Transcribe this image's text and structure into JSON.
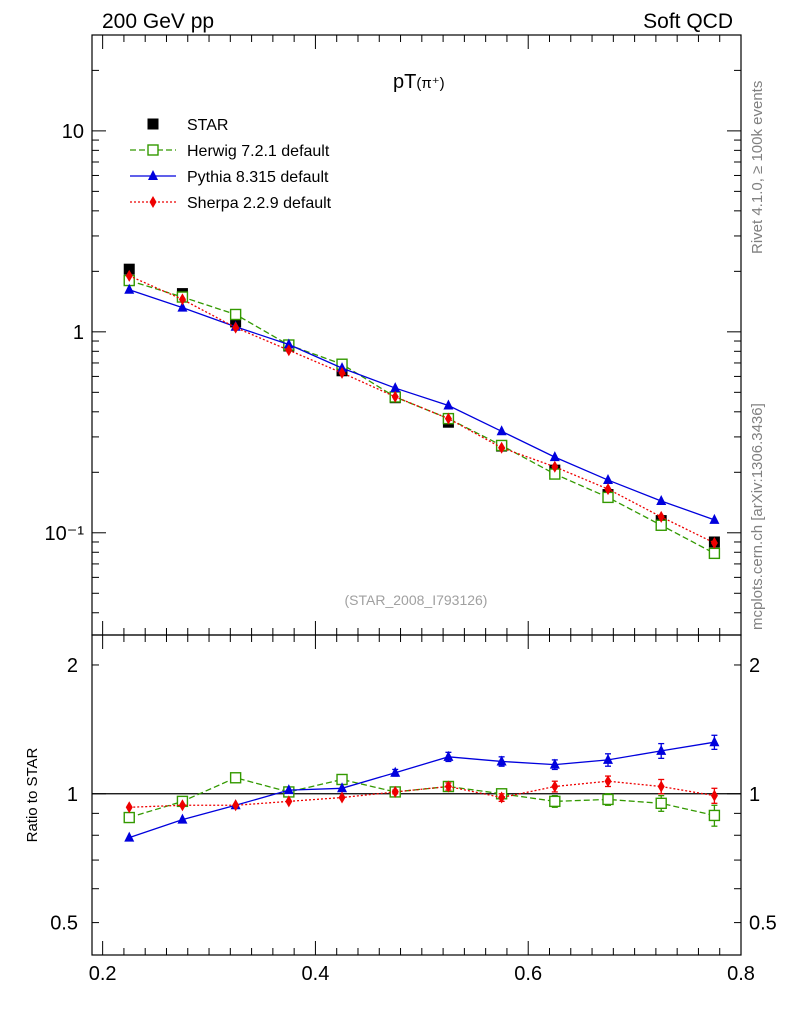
{
  "header": {
    "left": "200 GeV pp",
    "right": "Soft QCD"
  },
  "side_labels": {
    "rivet": "Rivet 4.1.0, ≥ 100k events",
    "mcplots": "mcplots.cern.ch [arXiv:1306.3436]"
  },
  "ref_label": "(STAR_2008_I793126)",
  "chart_data": [
    {
      "type": "line",
      "title": "pT(π⁺)",
      "title_main": "pT",
      "title_sub": "(π⁺)",
      "xlabel": "",
      "ylabel": "",
      "yscale": "log",
      "xlim": [
        0.19,
        0.8
      ],
      "ylim": [
        0.031,
        30
      ],
      "x_ticks": [
        "0.2",
        "0.4",
        "0.6",
        "0.8"
      ],
      "y_ticks": [
        {
          "value": 10,
          "label": "10"
        },
        {
          "value": 1,
          "label": "1"
        },
        {
          "value": 0.1,
          "label": "10⁻¹"
        }
      ],
      "legend_position": "top-left",
      "x": [
        0.225,
        0.275,
        0.325,
        0.375,
        0.425,
        0.475,
        0.525,
        0.575,
        0.625,
        0.675,
        0.725,
        0.775
      ],
      "series": [
        {
          "name": "STAR",
          "color": "#000000",
          "marker": "square-filled",
          "line": "none",
          "values": [
            2.05,
            1.55,
            1.12,
            0.85,
            0.64,
            0.47,
            0.355,
            0.27,
            0.205,
            0.155,
            0.115,
            0.09
          ]
        },
        {
          "name": "Herwig 7.2.1 default",
          "color": "#339900",
          "marker": "square-open",
          "line": "dashed",
          "values": [
            1.8,
            1.49,
            1.22,
            0.86,
            0.69,
            0.474,
            0.37,
            0.272,
            0.196,
            0.15,
            0.109,
            0.079
          ]
        },
        {
          "name": "Pythia 8.315 default",
          "color": "#0000dd",
          "marker": "triangle",
          "line": "solid",
          "values": [
            1.62,
            1.32,
            1.06,
            0.865,
            0.66,
            0.525,
            0.43,
            0.32,
            0.238,
            0.183,
            0.144,
            0.116
          ]
        },
        {
          "name": "Sherpa 2.2.9 default",
          "color": "#ee0000",
          "marker": "diamond",
          "line": "dotted",
          "values": [
            1.9,
            1.45,
            1.05,
            0.81,
            0.625,
            0.475,
            0.37,
            0.265,
            0.213,
            0.165,
            0.12,
            0.089
          ]
        }
      ]
    },
    {
      "type": "line",
      "title": "",
      "xlabel": "",
      "ylabel": "Ratio to STAR",
      "yscale": "log",
      "xlim": [
        0.19,
        0.8
      ],
      "ylim": [
        0.42,
        2.35
      ],
      "reference_line": 1,
      "x_ticks": [
        "0.2",
        "0.4",
        "0.6",
        "0.8"
      ],
      "y_ticks": [
        {
          "value": 2,
          "label": "2"
        },
        {
          "value": 1,
          "label": "1"
        },
        {
          "value": 0.5,
          "label": "0.5"
        }
      ],
      "x": [
        0.225,
        0.275,
        0.325,
        0.375,
        0.425,
        0.475,
        0.525,
        0.575,
        0.625,
        0.675,
        0.725,
        0.775
      ],
      "series": [
        {
          "name": "Herwig 7.2.1 default",
          "color": "#339900",
          "marker": "square-open",
          "line": "dashed",
          "values": [
            0.88,
            0.96,
            1.09,
            1.01,
            1.08,
            1.01,
            1.04,
            1.0,
            0.96,
            0.97,
            0.95,
            0.89
          ],
          "errors": [
            0.0,
            0.0,
            0.0,
            0.0,
            0.0,
            0.0,
            0.02,
            0.02,
            0.03,
            0.03,
            0.04,
            0.05
          ]
        },
        {
          "name": "Pythia 8.315 default",
          "color": "#0000dd",
          "marker": "triangle",
          "line": "solid",
          "values": [
            0.79,
            0.87,
            0.94,
            1.02,
            1.03,
            1.12,
            1.22,
            1.19,
            1.17,
            1.2,
            1.26,
            1.32
          ],
          "errors": [
            0.0,
            0.0,
            0.0,
            0.0,
            0.0,
            0.02,
            0.03,
            0.03,
            0.03,
            0.04,
            0.05,
            0.05
          ]
        },
        {
          "name": "Sherpa 2.2.9 default",
          "color": "#ee0000",
          "marker": "diamond",
          "line": "dotted",
          "values": [
            0.93,
            0.94,
            0.94,
            0.96,
            0.98,
            1.01,
            1.04,
            0.98,
            1.04,
            1.07,
            1.04,
            0.99
          ],
          "errors": [
            0.0,
            0.0,
            0.0,
            0.0,
            0.0,
            0.01,
            0.02,
            0.02,
            0.03,
            0.03,
            0.04,
            0.04
          ]
        }
      ]
    }
  ]
}
